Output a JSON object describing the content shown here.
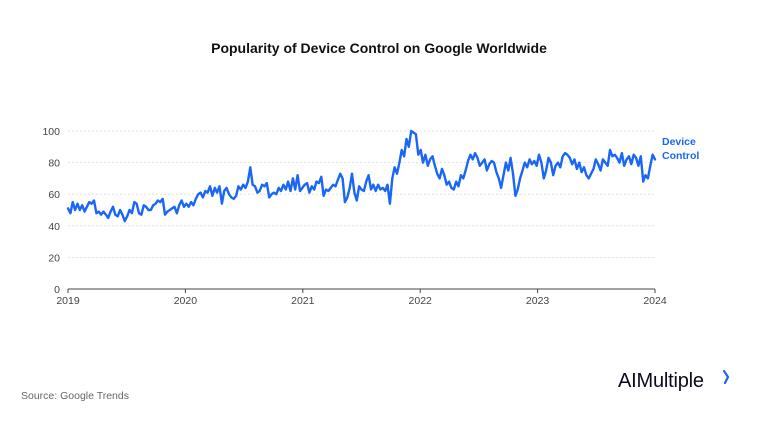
{
  "title": "Popularity of Device Control on Google Worldwide",
  "source": "Source: Google Trends",
  "brand": "AIMultiple",
  "colors": {
    "series": "#1a66f5",
    "grid": "#dcdcdc",
    "axis": "#444444",
    "brand_accent": "#1a66f5"
  },
  "chart_data": {
    "type": "line",
    "title": "Popularity of Device Control on Google Worldwide",
    "xlabel": "",
    "ylabel": "",
    "ylim": [
      0,
      100
    ],
    "yticks": [
      "0",
      "20",
      "40",
      "60",
      "80",
      "100"
    ],
    "xticks": [
      "2019",
      "2020",
      "2021",
      "2022",
      "2023",
      "2024"
    ],
    "grid": true,
    "legend": "right end of line",
    "series": [
      {
        "name": "Device Control",
        "x_start": 2019.0,
        "x_end": 2024.0,
        "values": [
          51,
          48,
          55,
          50,
          54,
          50,
          53,
          49,
          52,
          55,
          54,
          56,
          48,
          49,
          47,
          49,
          47,
          45,
          49,
          52,
          47,
          46,
          50,
          47,
          43,
          46,
          50,
          48,
          55,
          54,
          48,
          47,
          53,
          52,
          50,
          50,
          53,
          54,
          56,
          55,
          57,
          47,
          49,
          50,
          51,
          52,
          48,
          53,
          56,
          52,
          54,
          52,
          55,
          53,
          57,
          60,
          61,
          58,
          62,
          61,
          65,
          59,
          64,
          61,
          65,
          54,
          62,
          64,
          60,
          58,
          57,
          59,
          65,
          63,
          66,
          64,
          68,
          77,
          66,
          65,
          61,
          62,
          66,
          65,
          67,
          58,
          60,
          61,
          60,
          64,
          62,
          66,
          63,
          68,
          62,
          70,
          63,
          72,
          62,
          64,
          66,
          67,
          61,
          65,
          63,
          68,
          67,
          71,
          59,
          63,
          62,
          64,
          66,
          65,
          69,
          73,
          70,
          55,
          58,
          64,
          73,
          61,
          56,
          65,
          63,
          62,
          68,
          72,
          63,
          66,
          62,
          66,
          63,
          64,
          62,
          66,
          54,
          70,
          77,
          73,
          80,
          88,
          84,
          95,
          90,
          100,
          99,
          98,
          85,
          88,
          80,
          85,
          78,
          82,
          84,
          78,
          73,
          70,
          76,
          72,
          66,
          68,
          64,
          63,
          68,
          65,
          72,
          70,
          75,
          81,
          85,
          82,
          86,
          83,
          78,
          80,
          82,
          75,
          79,
          81,
          80,
          74,
          70,
          64,
          72,
          80,
          75,
          83,
          73,
          59,
          63,
          70,
          75,
          80,
          77,
          82,
          79,
          81,
          78,
          85,
          80,
          70,
          75,
          83,
          80,
          72,
          78,
          80,
          77,
          84,
          86,
          85,
          83,
          79,
          82,
          76,
          80,
          74,
          77,
          72,
          70,
          73,
          76,
          82,
          79,
          75,
          82,
          80,
          78,
          88,
          84,
          85,
          83,
          80,
          86,
          78,
          82,
          84,
          79,
          85,
          83,
          78,
          84,
          68,
          72,
          70,
          78,
          85,
          82
        ]
      }
    ]
  }
}
